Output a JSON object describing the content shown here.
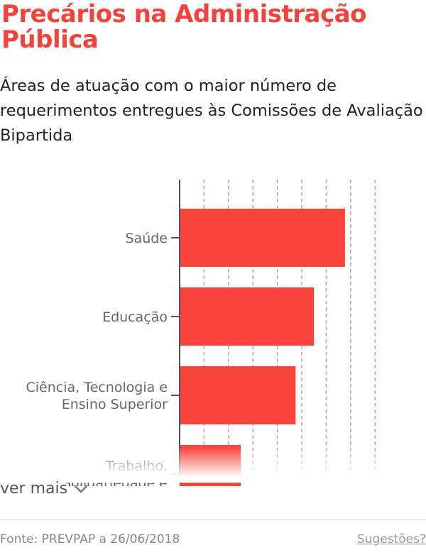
{
  "title": "Precários na Administração Pública",
  "subtitle": "Áreas de atuação com o maior número de requerimentos entregues às Comissões de Avaliação Bipartida",
  "chart_data": {
    "type": "bar",
    "orientation": "horizontal",
    "categories": [
      "Saúde",
      "Educação",
      "Ciência, Tecnologia e Ensino Superior",
      "Trabalho, Solidariedade e"
    ],
    "values": [
      6.77,
      5.5,
      4.75,
      2.5
    ],
    "value_note": "no x-axis tick labels shown; values in gridline steps",
    "xlim": [
      0,
      8.2
    ],
    "gridlines": [
      1,
      2,
      3,
      4,
      5,
      6,
      7,
      8
    ],
    "grid": true,
    "xlabel": "",
    "ylabel": "",
    "bar_color": "#f9433d"
  },
  "more": {
    "label": "ver mais",
    "icon": "chevron-down-icon"
  },
  "footer": {
    "source": "Fonte: PREVPAP a 26/06/2018",
    "suggestions": "Sugestões?"
  }
}
